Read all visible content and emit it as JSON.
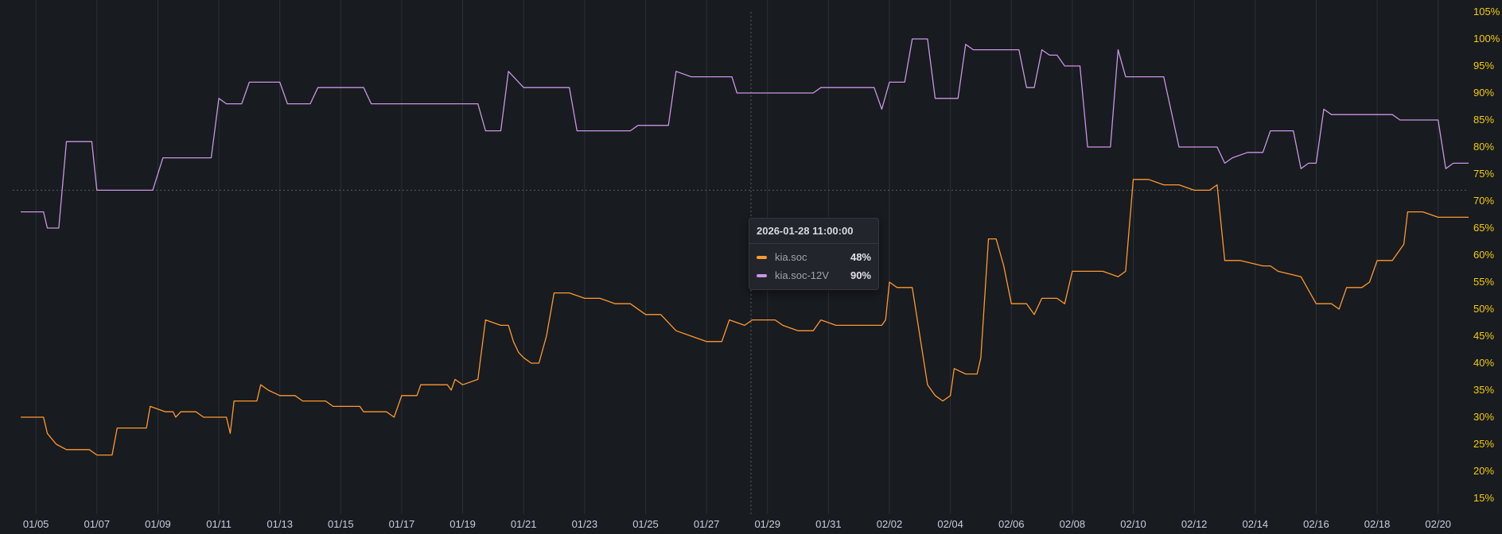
{
  "chart_data": {
    "type": "line",
    "x_start": "2026-01-04 12:00",
    "x_end": "2026-02-21 00:00",
    "x_ticks": [
      "01/05",
      "01/07",
      "01/09",
      "01/11",
      "01/13",
      "01/15",
      "01/17",
      "01/19",
      "01/21",
      "01/23",
      "01/25",
      "01/27",
      "01/29",
      "01/31",
      "02/02",
      "02/04",
      "02/06",
      "02/08",
      "02/10",
      "02/12",
      "02/14",
      "02/16",
      "02/18",
      "02/20"
    ],
    "ylim": [
      15,
      105
    ],
    "y_ticks": [
      "15%",
      "20%",
      "25%",
      "30%",
      "35%",
      "40%",
      "45%",
      "50%",
      "55%",
      "60%",
      "65%",
      "70%",
      "75%",
      "80%",
      "85%",
      "90%",
      "95%",
      "100%",
      "105%"
    ],
    "grid": true,
    "crosshair": {
      "x": "2026-01-28 11:00",
      "y": 72
    },
    "series": [
      {
        "name": "kia.soc",
        "color": "#ff9830",
        "points": [
          [
            "01-04 12:00",
            30
          ],
          [
            "01-05 06:00",
            30
          ],
          [
            "01-05 09:00",
            27
          ],
          [
            "01-05 16:00",
            25
          ],
          [
            "01-06 00:00",
            24
          ],
          [
            "01-06 18:00",
            24
          ],
          [
            "01-07 00:00",
            23
          ],
          [
            "01-07 12:00",
            23
          ],
          [
            "01-07 16:00",
            28
          ],
          [
            "01-08 15:00",
            28
          ],
          [
            "01-08 18:00",
            32
          ],
          [
            "01-09 06:00",
            31
          ],
          [
            "01-09 12:00",
            31
          ],
          [
            "01-09 14:00",
            30
          ],
          [
            "01-09 18:00",
            31
          ],
          [
            "01-10 06:00",
            31
          ],
          [
            "01-10 12:00",
            30
          ],
          [
            "01-11 06:00",
            30
          ],
          [
            "01-11 09:00",
            27
          ],
          [
            "01-11 12:00",
            33
          ],
          [
            "01-12 06:00",
            33
          ],
          [
            "01-12 09:00",
            36
          ],
          [
            "01-12 15:00",
            35
          ],
          [
            "01-13 00:00",
            34
          ],
          [
            "01-13 12:00",
            34
          ],
          [
            "01-13 18:00",
            33
          ],
          [
            "01-14 12:00",
            33
          ],
          [
            "01-14 18:00",
            32
          ],
          [
            "01-15 15:00",
            32
          ],
          [
            "01-15 18:00",
            31
          ],
          [
            "01-16 12:00",
            31
          ],
          [
            "01-16 18:00",
            30
          ],
          [
            "01-17 00:00",
            34
          ],
          [
            "01-17 12:00",
            34
          ],
          [
            "01-17 15:00",
            36
          ],
          [
            "01-18 12:00",
            36
          ],
          [
            "01-18 15:00",
            35
          ],
          [
            "01-18 18:00",
            37
          ],
          [
            "01-19 00:00",
            36
          ],
          [
            "01-19 12:00",
            37
          ],
          [
            "01-19 18:00",
            48
          ],
          [
            "01-20 06:00",
            47
          ],
          [
            "01-20 12:00",
            47
          ],
          [
            "01-20 16:00",
            44
          ],
          [
            "01-20 20:00",
            42
          ],
          [
            "01-21 00:00",
            41
          ],
          [
            "01-21 06:00",
            40
          ],
          [
            "01-21 12:00",
            40
          ],
          [
            "01-21 18:00",
            45
          ],
          [
            "01-22 00:00",
            53
          ],
          [
            "01-22 12:00",
            53
          ],
          [
            "01-23 00:00",
            52
          ],
          [
            "01-23 12:00",
            52
          ],
          [
            "01-24 00:00",
            51
          ],
          [
            "01-24 12:00",
            51
          ],
          [
            "01-25 00:00",
            49
          ],
          [
            "01-25 12:00",
            49
          ],
          [
            "01-26 00:00",
            46
          ],
          [
            "01-26 12:00",
            45
          ],
          [
            "01-27 00:00",
            44
          ],
          [
            "01-27 12:00",
            44
          ],
          [
            "01-27 18:00",
            48
          ],
          [
            "01-28 06:00",
            47
          ],
          [
            "01-28 12:00",
            48
          ],
          [
            "01-29 06:00",
            48
          ],
          [
            "01-29 12:00",
            47
          ],
          [
            "01-30 00:00",
            46
          ],
          [
            "01-30 12:00",
            46
          ],
          [
            "01-30 18:00",
            48
          ],
          [
            "01-31 06:00",
            47
          ],
          [
            "02-01 00:00",
            47
          ],
          [
            "02-01 12:00",
            47
          ],
          [
            "02-01 18:00",
            47
          ],
          [
            "02-01 21:00",
            48
          ],
          [
            "02-02 00:00",
            55
          ],
          [
            "02-02 06:00",
            54
          ],
          [
            "02-02 12:00",
            54
          ],
          [
            "02-02 18:00",
            54
          ],
          [
            "02-03 00:00",
            45
          ],
          [
            "02-03 06:00",
            36
          ],
          [
            "02-03 12:00",
            34
          ],
          [
            "02-03 18:00",
            33
          ],
          [
            "02-04 00:00",
            34
          ],
          [
            "02-04 03:00",
            39
          ],
          [
            "02-04 12:00",
            38
          ],
          [
            "02-04 21:00",
            38
          ],
          [
            "02-05 00:00",
            41
          ],
          [
            "02-05 06:00",
            63
          ],
          [
            "02-05 12:00",
            63
          ],
          [
            "02-05 18:00",
            58
          ],
          [
            "02-06 00:00",
            51
          ],
          [
            "02-06 12:00",
            51
          ],
          [
            "02-06 18:00",
            49
          ],
          [
            "02-07 00:00",
            52
          ],
          [
            "02-07 12:00",
            52
          ],
          [
            "02-07 18:00",
            51
          ],
          [
            "02-08 00:00",
            57
          ],
          [
            "02-08 12:00",
            57
          ],
          [
            "02-09 00:00",
            57
          ],
          [
            "02-09 12:00",
            56
          ],
          [
            "02-09 18:00",
            57
          ],
          [
            "02-10 00:00",
            74
          ],
          [
            "02-10 12:00",
            74
          ],
          [
            "02-11 00:00",
            73
          ],
          [
            "02-11 12:00",
            73
          ],
          [
            "02-12 00:00",
            72
          ],
          [
            "02-12 12:00",
            72
          ],
          [
            "02-12 18:00",
            73
          ],
          [
            "02-13 00:00",
            59
          ],
          [
            "02-13 12:00",
            59
          ],
          [
            "02-14 06:00",
            58
          ],
          [
            "02-14 12:00",
            58
          ],
          [
            "02-14 18:00",
            57
          ],
          [
            "02-15 12:00",
            56
          ],
          [
            "02-16 00:00",
            51
          ],
          [
            "02-16 12:00",
            51
          ],
          [
            "02-16 18:00",
            50
          ],
          [
            "02-17 00:00",
            54
          ],
          [
            "02-17 12:00",
            54
          ],
          [
            "02-17 18:00",
            55
          ],
          [
            "02-18 00:00",
            59
          ],
          [
            "02-18 12:00",
            59
          ],
          [
            "02-18 21:00",
            62
          ],
          [
            "02-19 00:00",
            68
          ],
          [
            "02-19 12:00",
            68
          ],
          [
            "02-20 00:00",
            67
          ],
          [
            "02-20 12:00",
            67
          ],
          [
            "02-21 00:00",
            67
          ]
        ]
      },
      {
        "name": "kia.soc-12V",
        "color": "#ca95e5",
        "points": [
          [
            "01-04 12:00",
            68
          ],
          [
            "01-05 06:00",
            68
          ],
          [
            "01-05 09:00",
            65
          ],
          [
            "01-05 18:00",
            65
          ],
          [
            "01-06 00:00",
            81
          ],
          [
            "01-06 12:00",
            81
          ],
          [
            "01-06 20:00",
            81
          ],
          [
            "01-07 00:00",
            72
          ],
          [
            "01-07 12:00",
            72
          ],
          [
            "01-08 12:00",
            72
          ],
          [
            "01-08 20:00",
            72
          ],
          [
            "01-09 04:00",
            78
          ],
          [
            "01-10 12:00",
            78
          ],
          [
            "01-10 18:00",
            78
          ],
          [
            "01-11 00:00",
            89
          ],
          [
            "01-11 06:00",
            88
          ],
          [
            "01-11 12:00",
            88
          ],
          [
            "01-11 18:00",
            88
          ],
          [
            "01-12 00:00",
            92
          ],
          [
            "01-12 12:00",
            92
          ],
          [
            "01-13 00:00",
            92
          ],
          [
            "01-13 06:00",
            88
          ],
          [
            "01-14 00:00",
            88
          ],
          [
            "01-14 06:00",
            91
          ],
          [
            "01-15 00:00",
            91
          ],
          [
            "01-15 18:00",
            91
          ],
          [
            "01-16 00:00",
            88
          ],
          [
            "01-17 00:00",
            88
          ],
          [
            "01-18 00:00",
            88
          ],
          [
            "01-19 12:00",
            88
          ],
          [
            "01-19 18:00",
            83
          ],
          [
            "01-20 06:00",
            83
          ],
          [
            "01-20 12:00",
            94
          ],
          [
            "01-21 00:00",
            91
          ],
          [
            "01-21 12:00",
            91
          ],
          [
            "01-22 12:00",
            91
          ],
          [
            "01-22 18:00",
            83
          ],
          [
            "01-23 12:00",
            83
          ],
          [
            "01-24 12:00",
            83
          ],
          [
            "01-24 18:00",
            84
          ],
          [
            "01-25 00:00",
            84
          ],
          [
            "01-25 18:00",
            84
          ],
          [
            "01-26 00:00",
            94
          ],
          [
            "01-26 12:00",
            93
          ],
          [
            "01-27 12:00",
            93
          ],
          [
            "01-27 20:00",
            93
          ],
          [
            "01-28 00:00",
            90
          ],
          [
            "01-28 12:00",
            90
          ],
          [
            "01-29 12:00",
            90
          ],
          [
            "01-30 12:00",
            90
          ],
          [
            "01-30 18:00",
            91
          ],
          [
            "01-31 12:00",
            91
          ],
          [
            "02-01 12:00",
            91
          ],
          [
            "02-01 18:00",
            87
          ],
          [
            "02-02 00:00",
            92
          ],
          [
            "02-02 12:00",
            92
          ],
          [
            "02-02 18:00",
            100
          ],
          [
            "02-03 06:00",
            100
          ],
          [
            "02-03 12:00",
            89
          ],
          [
            "02-03 18:00",
            89
          ],
          [
            "02-04 06:00",
            89
          ],
          [
            "02-04 12:00",
            99
          ],
          [
            "02-04 18:00",
            98
          ],
          [
            "02-05 12:00",
            98
          ],
          [
            "02-06 06:00",
            98
          ],
          [
            "02-06 12:00",
            91
          ],
          [
            "02-06 18:00",
            91
          ],
          [
            "02-07 00:00",
            98
          ],
          [
            "02-07 06:00",
            97
          ],
          [
            "02-07 12:00",
            97
          ],
          [
            "02-07 18:00",
            95
          ],
          [
            "02-08 06:00",
            95
          ],
          [
            "02-08 12:00",
            80
          ],
          [
            "02-08 18:00",
            80
          ],
          [
            "02-09 06:00",
            80
          ],
          [
            "02-09 12:00",
            98
          ],
          [
            "02-09 18:00",
            93
          ],
          [
            "02-10 12:00",
            93
          ],
          [
            "02-11 00:00",
            93
          ],
          [
            "02-11 12:00",
            80
          ],
          [
            "02-12 00:00",
            80
          ],
          [
            "02-12 18:00",
            80
          ],
          [
            "02-13 00:00",
            77
          ],
          [
            "02-13 06:00",
            78
          ],
          [
            "02-13 18:00",
            79
          ],
          [
            "02-14 06:00",
            79
          ],
          [
            "02-14 12:00",
            83
          ],
          [
            "02-14 18:00",
            83
          ],
          [
            "02-15 06:00",
            83
          ],
          [
            "02-15 12:00",
            76
          ],
          [
            "02-15 18:00",
            77
          ],
          [
            "02-16 00:00",
            77
          ],
          [
            "02-16 06:00",
            87
          ],
          [
            "02-16 12:00",
            86
          ],
          [
            "02-17 12:00",
            86
          ],
          [
            "02-18 12:00",
            86
          ],
          [
            "02-18 18:00",
            85
          ],
          [
            "02-19 12:00",
            85
          ],
          [
            "02-20 00:00",
            85
          ],
          [
            "02-20 06:00",
            76
          ],
          [
            "02-20 12:00",
            77
          ],
          [
            "02-21 00:00",
            77
          ]
        ]
      }
    ]
  },
  "tooltip": {
    "time": "2026-01-28 11:00:00",
    "rows": [
      {
        "color": "#ff9830",
        "name": "kia.soc",
        "value": "48%"
      },
      {
        "color": "#ca95e5",
        "name": "kia.soc-12V",
        "value": "90%"
      }
    ]
  }
}
